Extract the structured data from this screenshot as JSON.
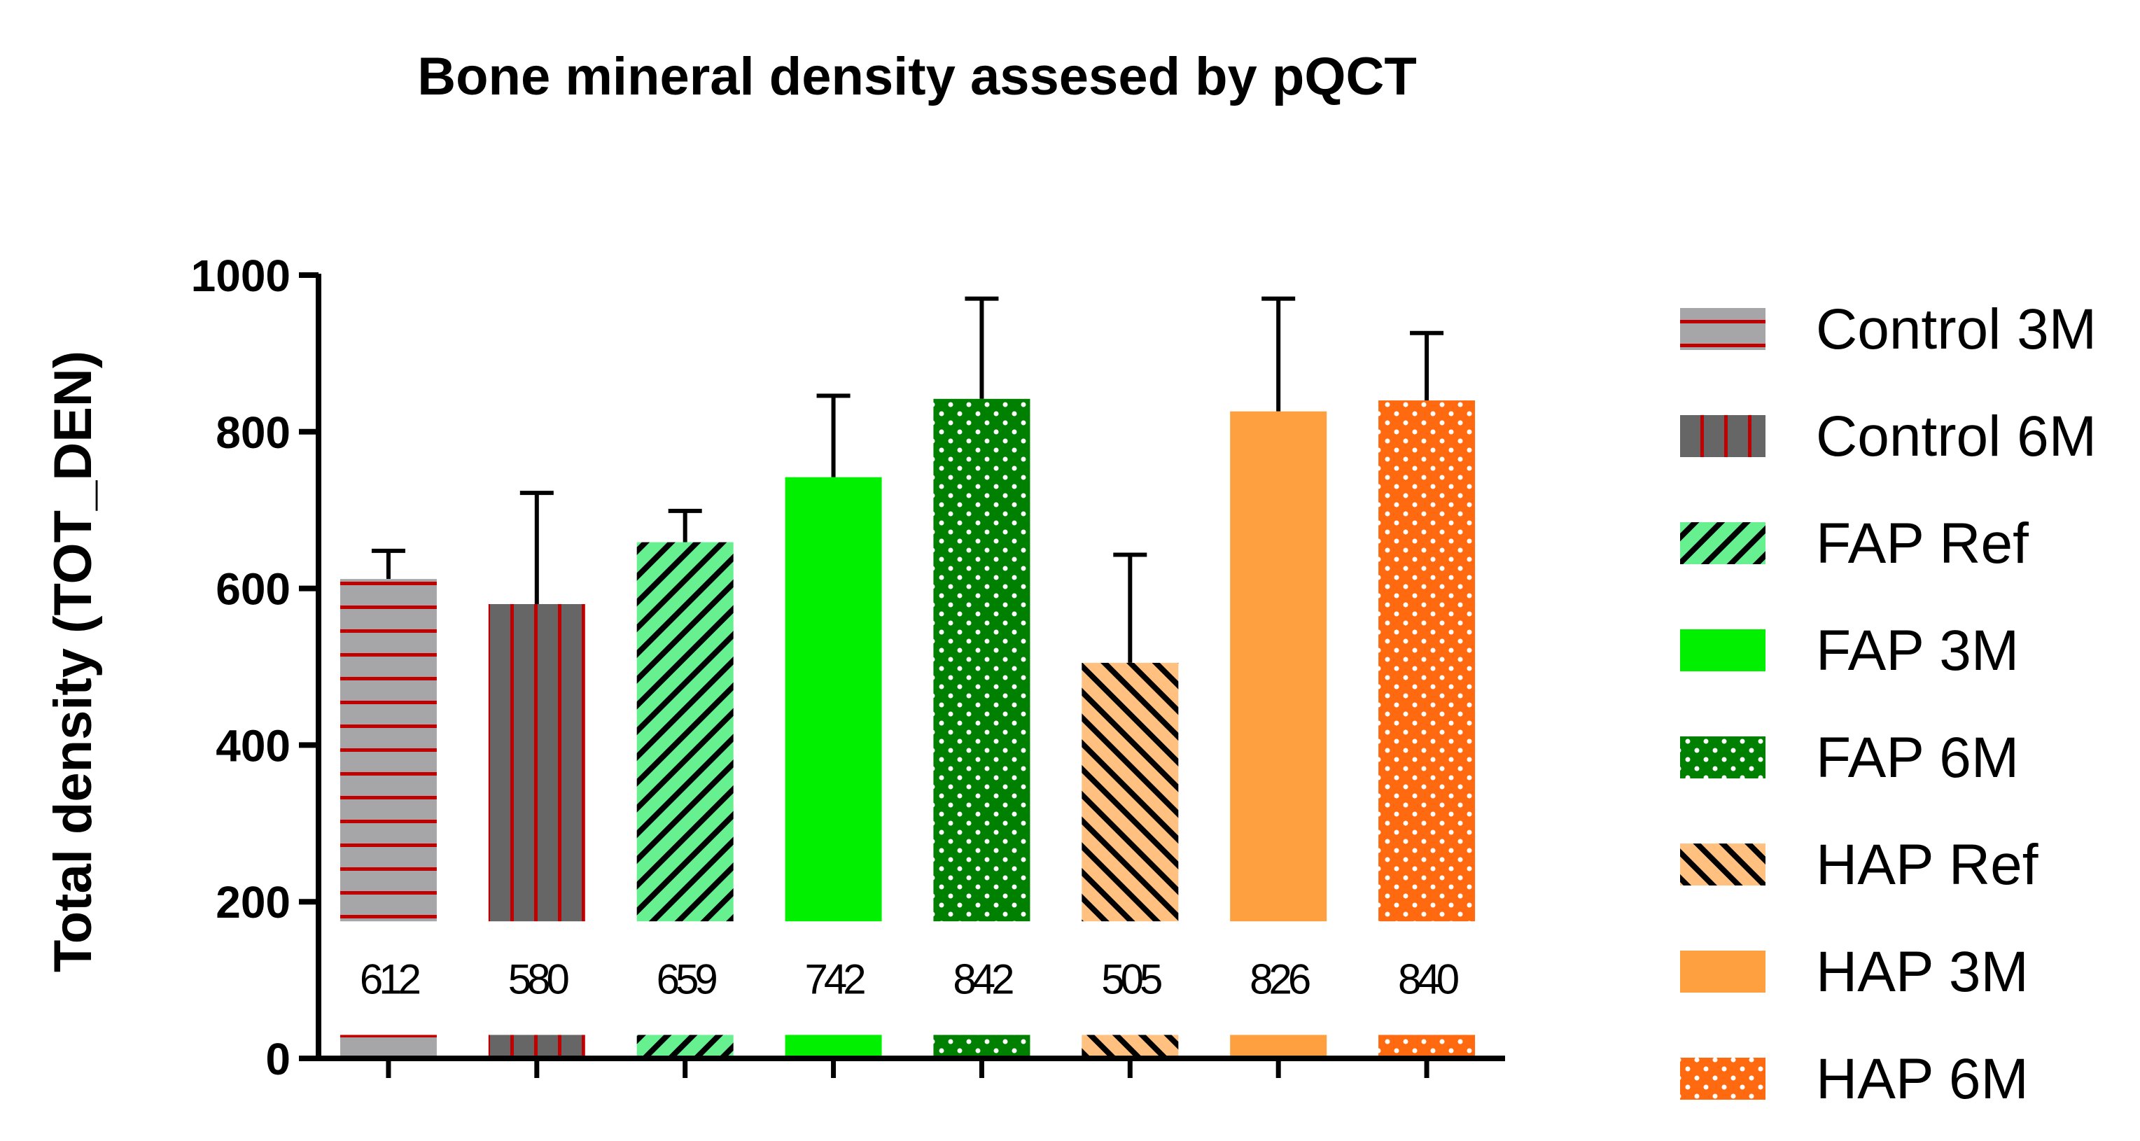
{
  "chart_data": {
    "type": "bar",
    "title": "Bone mineral density assesed by pQCT",
    "xlabel": "",
    "ylabel": "Total density (TOT_DEN)",
    "ylim": [
      0,
      1000
    ],
    "yticks": [
      "0",
      "200",
      "400",
      "600",
      "800",
      "1000"
    ],
    "categories": [
      "Control 3M",
      "Control 6M",
      "FAP Ref",
      "FAP 3M",
      "FAP 6M",
      "HAP Ref",
      "HAP 3M",
      "HAP 6M"
    ],
    "values": [
      612,
      580,
      659,
      742,
      842,
      505,
      826,
      840
    ],
    "errors": [
      36,
      142,
      40,
      104,
      128,
      138,
      144,
      86
    ],
    "data_labels": [
      "612",
      "580",
      "659",
      "742",
      "842",
      "505",
      "826",
      "840"
    ],
    "colors": [
      "#a6a6a8",
      "#666666",
      "#66f090",
      "#00f000",
      "#008000",
      "#ffc080",
      "#ffa040",
      "#ff6a10"
    ],
    "patterns": [
      "red-horizontal",
      "red-vertical",
      "diagonal-black",
      "solid",
      "white-dots",
      "diagonal-black-reverse",
      "solid",
      "white-dots"
    ],
    "accent_line_color": "#c00000",
    "legend_position": "right"
  }
}
